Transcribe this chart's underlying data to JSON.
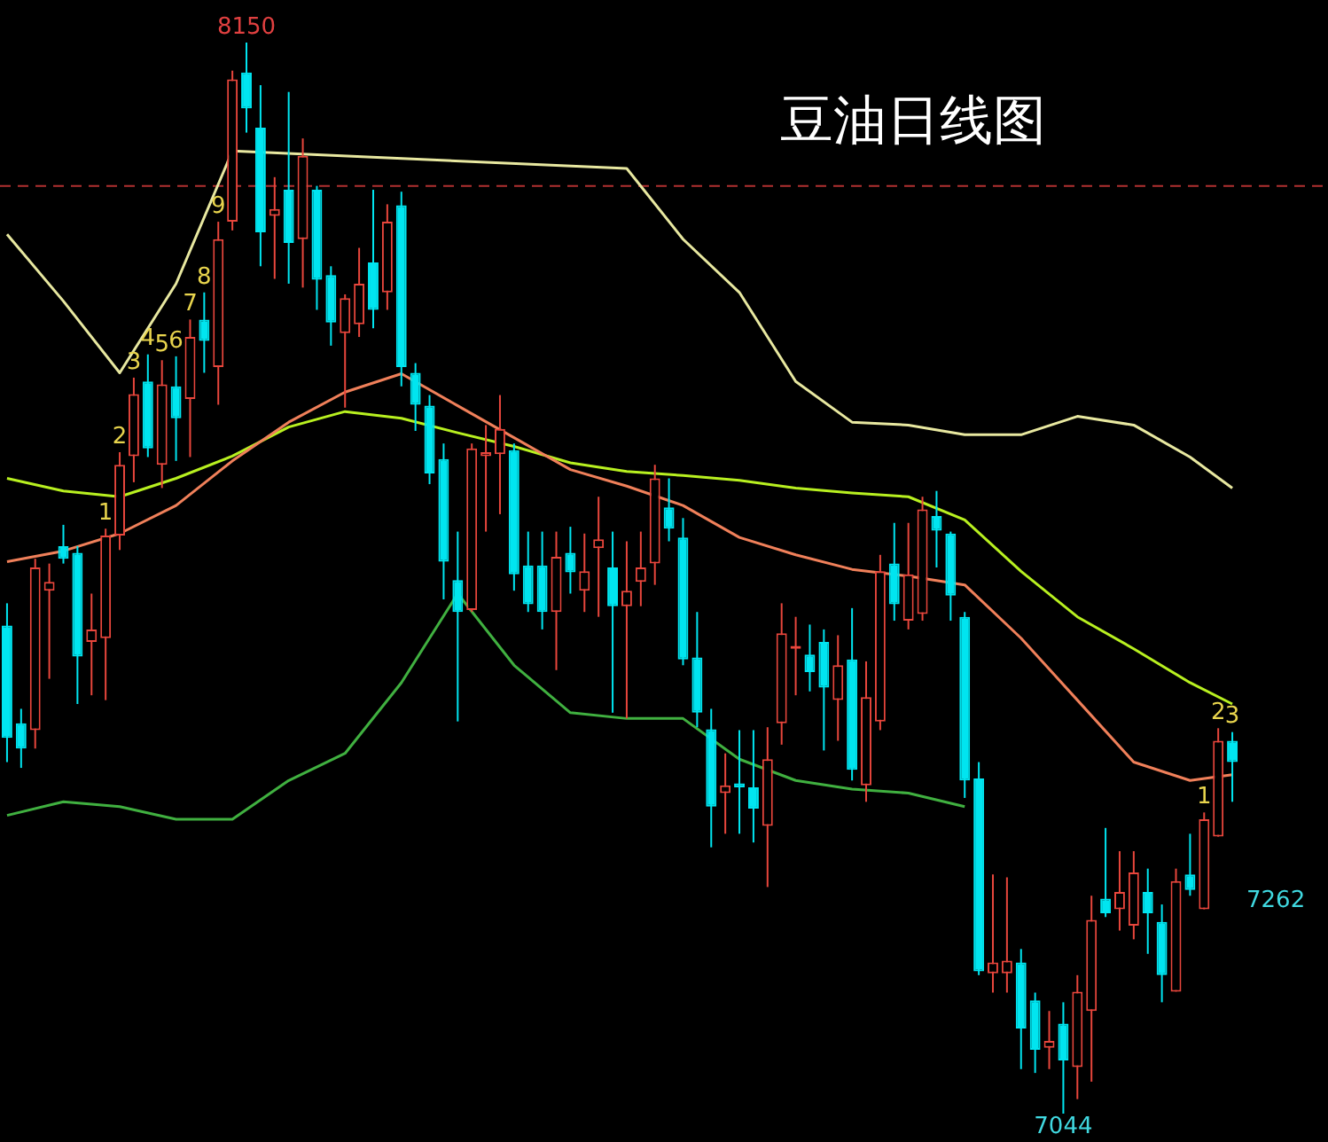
{
  "chart_data": {
    "type": "candlestick",
    "title": "豆油日线图",
    "categories": [
      null,
      null,
      null,
      null,
      null,
      null,
      null,
      null,
      null,
      null,
      null,
      null,
      null,
      null,
      null,
      null,
      null,
      null,
      null,
      null,
      null,
      null,
      null,
      null,
      null,
      null,
      null,
      null,
      null,
      null,
      null,
      null,
      null,
      null,
      null,
      null,
      null,
      null,
      null,
      null,
      null,
      null,
      null,
      null,
      null,
      null,
      null,
      null,
      null,
      null,
      null,
      null,
      null,
      null,
      null,
      null,
      null,
      null,
      null,
      null,
      null,
      null,
      null,
      null,
      null,
      null,
      null,
      null,
      null,
      null,
      null,
      null,
      null,
      null,
      null,
      null,
      null,
      null,
      null,
      null,
      null,
      null,
      null,
      null,
      null,
      null,
      null,
      null
    ],
    "ohlc": [
      [
        7548,
        7571,
        7407,
        7432
      ],
      [
        7447,
        7462,
        7401,
        7421
      ],
      [
        7440,
        7617,
        7421,
        7608
      ],
      [
        7584,
        7612,
        7493,
        7593
      ],
      [
        7630,
        7652,
        7612,
        7617
      ],
      [
        7623,
        7630,
        7467,
        7516
      ],
      [
        7531,
        7581,
        7476,
        7544
      ],
      [
        7535,
        7648,
        7471,
        7641
      ],
      [
        7641,
        7727,
        7626,
        7714
      ],
      [
        7723,
        7804,
        7696,
        7787
      ],
      [
        7800,
        7828,
        7722,
        7731
      ],
      [
        7714,
        7822,
        7690,
        7797
      ],
      [
        7795,
        7826,
        7718,
        7762
      ],
      [
        7782,
        7864,
        7722,
        7846
      ],
      [
        7864,
        7892,
        7809,
        7842
      ],
      [
        7815,
        7965,
        7776,
        7947
      ],
      [
        7965,
        8121,
        7956,
        8112
      ],
      [
        8119,
        8150,
        8057,
        8082
      ],
      [
        8062,
        8106,
        7919,
        7954
      ],
      [
        7971,
        8011,
        7906,
        7978
      ],
      [
        7998,
        8099,
        7901,
        7943
      ],
      [
        7947,
        8051,
        7897,
        8033
      ],
      [
        7998,
        8002,
        7874,
        7905
      ],
      [
        7910,
        7919,
        7837,
        7861
      ],
      [
        7850,
        7890,
        7773,
        7886
      ],
      [
        7859,
        7938,
        7846,
        7901
      ],
      [
        7923,
        7998,
        7855,
        7874
      ],
      [
        7892,
        7983,
        7874,
        7965
      ],
      [
        7982,
        7996,
        7795,
        7815
      ],
      [
        7809,
        7819,
        7749,
        7776
      ],
      [
        7775,
        7786,
        7694,
        7705
      ],
      [
        7720,
        7736,
        7575,
        7614
      ],
      [
        7595,
        7645,
        7449,
        7562
      ],
      [
        7564,
        7736,
        7562,
        7731
      ],
      [
        7723,
        7755,
        7645,
        7727
      ],
      [
        7725,
        7786,
        7663,
        7751
      ],
      [
        7729,
        7736,
        7584,
        7601
      ],
      [
        7610,
        7645,
        7562,
        7570
      ],
      [
        7610,
        7645,
        7544,
        7562
      ],
      [
        7562,
        7645,
        7502,
        7619
      ],
      [
        7623,
        7650,
        7581,
        7603
      ],
      [
        7584,
        7643,
        7562,
        7604
      ],
      [
        7628,
        7681,
        7557,
        7637
      ],
      [
        7608,
        7645,
        7458,
        7568
      ],
      [
        7568,
        7635,
        7452,
        7584
      ],
      [
        7593,
        7645,
        7568,
        7608
      ],
      [
        7612,
        7714,
        7590,
        7700
      ],
      [
        7670,
        7700,
        7635,
        7648
      ],
      [
        7639,
        7659,
        7507,
        7513
      ],
      [
        7515,
        7562,
        7443,
        7458
      ],
      [
        7441,
        7462,
        7319,
        7361
      ],
      [
        7375,
        7416,
        7333,
        7383
      ],
      [
        7385,
        7440,
        7333,
        7381
      ],
      [
        7381,
        7440,
        7324,
        7359
      ],
      [
        7341,
        7443,
        7278,
        7410
      ],
      [
        7447,
        7571,
        7425,
        7540
      ],
      [
        7524,
        7557,
        7476,
        7527
      ],
      [
        7518,
        7549,
        7480,
        7500
      ],
      [
        7531,
        7544,
        7419,
        7484
      ],
      [
        7471,
        7538,
        7429,
        7507
      ],
      [
        7513,
        7566,
        7388,
        7399
      ],
      [
        7383,
        7511,
        7366,
        7474
      ],
      [
        7449,
        7621,
        7440,
        7604
      ],
      [
        7612,
        7654,
        7553,
        7570
      ],
      [
        7553,
        7654,
        7544,
        7601
      ],
      [
        7560,
        7681,
        7553,
        7668
      ],
      [
        7661,
        7687,
        7608,
        7646
      ],
      [
        7643,
        7645,
        7553,
        7579
      ],
      [
        7557,
        7562,
        7370,
        7388
      ],
      [
        7390,
        7407,
        7187,
        7191
      ],
      [
        7189,
        7291,
        7169,
        7200
      ],
      [
        7189,
        7288,
        7169,
        7202
      ],
      [
        7200,
        7214,
        7090,
        7132
      ],
      [
        7161,
        7169,
        7086,
        7110
      ],
      [
        7112,
        7150,
        7090,
        7119
      ],
      [
        7137,
        7159,
        7044,
        7099
      ],
      [
        7092,
        7187,
        7059,
        7170
      ],
      [
        7150,
        7269,
        7077,
        7244
      ],
      [
        7266,
        7339,
        7247,
        7251
      ],
      [
        7255,
        7315,
        7233,
        7273
      ],
      [
        7238,
        7315,
        7224,
        7293
      ],
      [
        7273,
        7297,
        7209,
        7251
      ],
      [
        7242,
        7260,
        7159,
        7187
      ],
      [
        7170,
        7297,
        7170,
        7284
      ],
      [
        7291,
        7333,
        7269,
        7275
      ],
      [
        7255,
        7355,
        7255,
        7348
      ],
      [
        7330,
        7442,
        7330,
        7429
      ],
      [
        7429,
        7438,
        7366,
        7407
      ]
    ],
    "series": [
      {
        "type": "line",
        "color": "#f0805a",
        "values": [
          7614,
          null,
          null,
          null,
          7625,
          null,
          null,
          null,
          7643,
          null,
          null,
          null,
          7672,
          null,
          null,
          null,
          7718,
          null,
          null,
          null,
          7758,
          null,
          null,
          null,
          7789,
          null,
          null,
          null,
          7808,
          null,
          null,
          null,
          7775,
          null,
          null,
          null,
          7742,
          null,
          null,
          null,
          7709,
          null,
          null,
          null,
          7692,
          null,
          null,
          null,
          7672,
          null,
          null,
          null,
          7639,
          null,
          null,
          null,
          7621,
          null,
          null,
          null,
          7606,
          null,
          null,
          null,
          7599,
          null,
          null,
          null,
          7590,
          null,
          null,
          null,
          7535,
          null,
          null,
          null,
          7471,
          null,
          null,
          null,
          7407,
          null,
          null,
          null,
          7388,
          null,
          null,
          7394
        ]
      },
      {
        "type": "line",
        "color": "#b8f020",
        "values": [
          7700,
          null,
          null,
          null,
          7687,
          null,
          null,
          null,
          7681,
          null,
          null,
          null,
          7700,
          null,
          null,
          null,
          7723,
          null,
          null,
          null,
          7753,
          null,
          null,
          null,
          7769,
          null,
          null,
          null,
          7762,
          null,
          null,
          null,
          7747,
          null,
          null,
          null,
          7733,
          null,
          null,
          null,
          7716,
          null,
          null,
          null,
          7707,
          null,
          null,
          null,
          7703,
          null,
          null,
          null,
          7698,
          null,
          null,
          null,
          7690,
          null,
          null,
          null,
          7685,
          null,
          null,
          null,
          7681,
          null,
          null,
          null,
          7657,
          null,
          null,
          null,
          7604,
          null,
          null,
          null,
          7557,
          null,
          null,
          null,
          7524,
          null,
          null,
          null,
          7489,
          null,
          null,
          7467
        ]
      },
      {
        "type": "line",
        "color": "#e8e8a0",
        "values": [
          7952,
          null,
          null,
          null,
          7883,
          null,
          null,
          null,
          7809,
          null,
          null,
          null,
          7901,
          null,
          null,
          null,
          8038,
          null,
          null,
          null,
          null,
          null,
          null,
          null,
          null,
          null,
          null,
          null,
          null,
          null,
          null,
          null,
          null,
          null,
          null,
          null,
          null,
          null,
          null,
          null,
          null,
          null,
          null,
          null,
          8020,
          null,
          null,
          null,
          7947,
          null,
          null,
          null,
          7892,
          null,
          null,
          null,
          7800,
          null,
          null,
          null,
          7758,
          null,
          null,
          null,
          7755,
          null,
          null,
          null,
          7745,
          null,
          null,
          null,
          7745,
          null,
          null,
          null,
          7764,
          null,
          null,
          null,
          7755,
          null,
          null,
          null,
          7722,
          null,
          null,
          7690
        ]
      },
      {
        "type": "line",
        "color": "#40b040",
        "values": [
          7352,
          null,
          null,
          null,
          7366,
          null,
          null,
          null,
          7361,
          null,
          null,
          null,
          7348,
          null,
          null,
          null,
          7348,
          null,
          null,
          null,
          7388,
          null,
          null,
          null,
          7416,
          null,
          null,
          null,
          7489,
          null,
          null,
          null,
          7581,
          null,
          null,
          null,
          7507,
          null,
          null,
          null,
          7458,
          null,
          null,
          null,
          7452,
          null,
          null,
          null,
          7452,
          null,
          null,
          null,
          7410,
          null,
          null,
          null,
          7388,
          null,
          null,
          null,
          7379,
          null,
          null,
          null,
          7375,
          null,
          null,
          null,
          7361,
          null,
          null,
          null,
          null,
          null,
          null,
          null,
          null,
          null,
          null,
          null,
          null,
          null,
          null,
          null,
          null,
          null,
          null,
          null
        ]
      }
    ],
    "marker": "none",
    "ref_lines": [
      {
        "axis": "y",
        "value": 8002,
        "color": "#b03030",
        "line_style": "dashed"
      }
    ],
    "annotations": [
      {
        "text": "1",
        "y": 7648
      },
      {
        "text": "2",
        "y": 7727
      },
      {
        "text": "3",
        "y": 7804
      },
      {
        "text": "4",
        "y": 7828
      },
      {
        "text": "5",
        "y": 7822
      },
      {
        "text": "6",
        "y": 7826
      },
      {
        "text": "7",
        "y": 7864
      },
      {
        "text": "8",
        "y": 7892
      },
      {
        "text": "9",
        "y": 7965
      },
      {
        "text": "8150",
        "y": 8150
      },
      {
        "text": "1",
        "y": 7355
      },
      {
        "text": "2",
        "y": 7442
      },
      {
        "text": "3",
        "y": 7438
      },
      "7262",
      {
        "text": "7044",
        "y": 7044
      }
    ]
  }
}
